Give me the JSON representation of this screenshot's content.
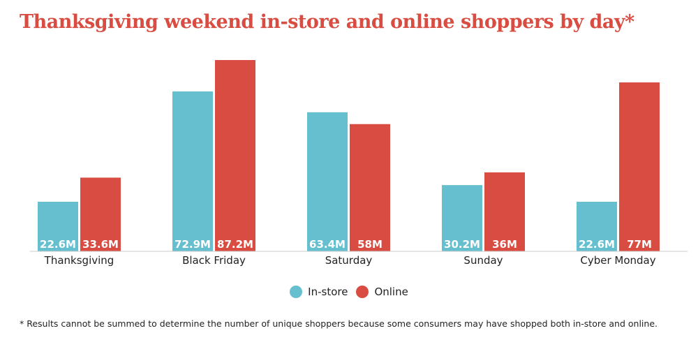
{
  "title": "Thanksgiving weekend in-store and online shoppers by day*",
  "footnote": "* Results cannot be summed to determine the number of unique shoppers because some consumers may have shopped both in-store and online.",
  "colors": {
    "in_store": "#66bfcf",
    "online": "#d94c41",
    "title": "#d94c41"
  },
  "chart_data": {
    "type": "bar",
    "categories": [
      "Thanksgiving",
      "Black Friday",
      "Saturday",
      "Sunday",
      "Cyber Monday"
    ],
    "series": [
      {
        "name": "In-store",
        "values": [
          22.6,
          72.9,
          63.4,
          30.2,
          22.6
        ],
        "labels": [
          "22.6M",
          "72.9M",
          "63.4M",
          "30.2M",
          "22.6M"
        ]
      },
      {
        "name": "Online",
        "values": [
          33.6,
          87.2,
          58,
          36,
          77
        ],
        "labels": [
          "33.6M",
          "87.2M",
          "58M",
          "36M",
          "77M"
        ]
      }
    ],
    "unit": "M",
    "ylim": [
      0,
      90
    ],
    "grid": false,
    "legend": "bottom-center"
  }
}
